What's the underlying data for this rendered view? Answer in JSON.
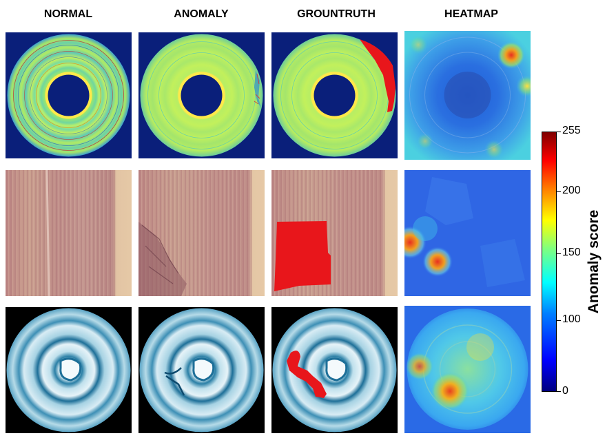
{
  "columns": [
    "NORMAL",
    "ANOMALY",
    "GROUNTRUTH",
    "HEATMAP"
  ],
  "rows": [
    "disc",
    "wood",
    "tree-ring"
  ],
  "colorbar": {
    "title": "Anomaly score",
    "ticks": [
      "255",
      "200",
      "150",
      "100",
      "0"
    ],
    "tick_values": [
      255,
      200,
      150,
      100,
      0
    ],
    "range": [
      0,
      255
    ],
    "colormap": "jet"
  },
  "colors": {
    "disc_background": "#0a1f7a",
    "groundtruth_mask": "#e8161b",
    "wood_base": "#caa08f",
    "tree_background": "#000000"
  }
}
